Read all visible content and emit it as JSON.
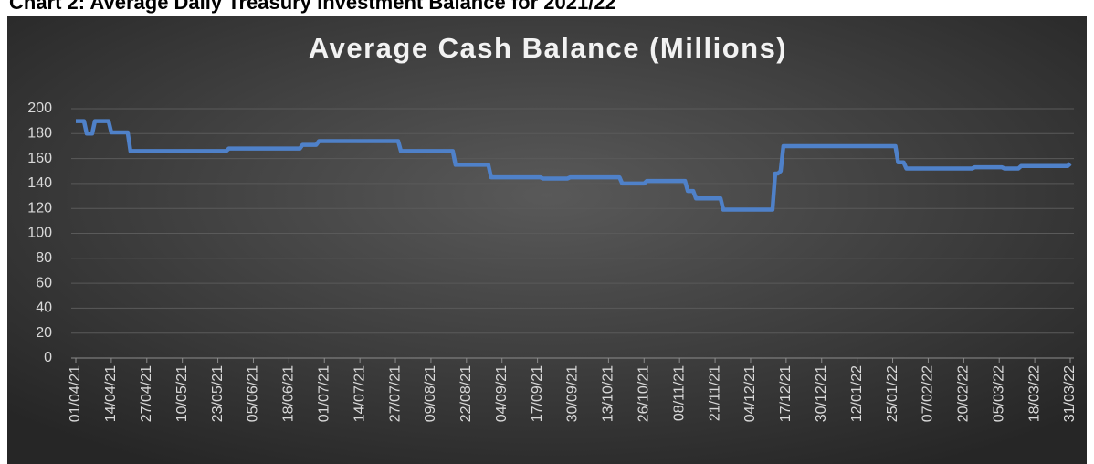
{
  "heading": "Chart 2: Average Daily Treasury Investment Balance for 2021/22",
  "chart_data": {
    "type": "line",
    "title": "Average Cash Balance (Millions)",
    "categories": [
      "01/04/21",
      null,
      null,
      null,
      null,
      null,
      null,
      null,
      null,
      null,
      null,
      null,
      null,
      "14/04/21",
      null,
      null,
      null,
      null,
      null,
      null,
      null,
      null,
      null,
      null,
      null,
      null,
      "27/04/21",
      null,
      null,
      null,
      null,
      null,
      null,
      null,
      null,
      null,
      null,
      null,
      null,
      "10/05/21",
      null,
      null,
      null,
      null,
      null,
      null,
      null,
      null,
      null,
      null,
      null,
      null,
      "23/05/21",
      null,
      null,
      null,
      null,
      null,
      null,
      null,
      null,
      null,
      null,
      null,
      null,
      "05/06/21",
      null,
      null,
      null,
      null,
      null,
      null,
      null,
      null,
      null,
      null,
      null,
      null,
      "18/06/21",
      null,
      null,
      null,
      null,
      null,
      null,
      null,
      null,
      null,
      null,
      null,
      null,
      "01/07/21",
      null,
      null,
      null,
      null,
      null,
      null,
      null,
      null,
      null,
      null,
      null,
      null,
      "14/07/21",
      null,
      null,
      null,
      null,
      null,
      null,
      null,
      null,
      null,
      null,
      null,
      null,
      "27/07/21",
      null,
      null,
      null,
      null,
      null,
      null,
      null,
      null,
      null,
      null,
      null,
      null,
      "09/08/21",
      null,
      null,
      null,
      null,
      null,
      null,
      null,
      null,
      null,
      null,
      null,
      null,
      "22/08/21",
      null,
      null,
      null,
      null,
      null,
      null,
      null,
      null,
      null,
      null,
      null,
      null,
      "04/09/21",
      null,
      null,
      null,
      null,
      null,
      null,
      null,
      null,
      null,
      null,
      null,
      null,
      "17/09/21",
      null,
      null,
      null,
      null,
      null,
      null,
      null,
      null,
      null,
      null,
      null,
      null,
      "30/09/21",
      null,
      null,
      null,
      null,
      null,
      null,
      null,
      null,
      null,
      null,
      null,
      null,
      "13/10/21",
      null,
      null,
      null,
      null,
      null,
      null,
      null,
      null,
      null,
      null,
      null,
      null,
      "26/10/21",
      null,
      null,
      null,
      null,
      null,
      null,
      null,
      null,
      null,
      null,
      null,
      null,
      "08/11/21",
      null,
      null,
      null,
      null,
      null,
      null,
      null,
      null,
      null,
      null,
      null,
      null,
      "21/11/21",
      null,
      null,
      null,
      null,
      null,
      null,
      null,
      null,
      null,
      null,
      null,
      null,
      "04/12/21",
      null,
      null,
      null,
      null,
      null,
      null,
      null,
      null,
      null,
      null,
      null,
      null,
      "17/12/21",
      null,
      null,
      null,
      null,
      null,
      null,
      null,
      null,
      null,
      null,
      null,
      null,
      "30/12/21",
      null,
      null,
      null,
      null,
      null,
      null,
      null,
      null,
      null,
      null,
      null,
      null,
      "12/01/22",
      null,
      null,
      null,
      null,
      null,
      null,
      null,
      null,
      null,
      null,
      null,
      null,
      "25/01/22",
      null,
      null,
      null,
      null,
      null,
      null,
      null,
      null,
      null,
      null,
      null,
      null,
      "07/02/22",
      null,
      null,
      null,
      null,
      null,
      null,
      null,
      null,
      null,
      null,
      null,
      null,
      "20/02/22",
      null,
      null,
      null,
      null,
      null,
      null,
      null,
      null,
      null,
      null,
      null,
      null,
      "05/03/22",
      null,
      null,
      null,
      null,
      null,
      null,
      null,
      null,
      null,
      null,
      null,
      null,
      "18/03/22",
      null,
      null,
      null,
      null,
      null,
      null,
      null,
      null,
      null,
      null,
      null,
      null,
      "31/03/22"
    ],
    "values": [
      190,
      190,
      190,
      190,
      180,
      180,
      180,
      190,
      190,
      190,
      190,
      190,
      190,
      181,
      181,
      181,
      181,
      181,
      181,
      181,
      166,
      166,
      166,
      166,
      166,
      166,
      166,
      166,
      166,
      166,
      166,
      166,
      166,
      166,
      166,
      166,
      166,
      166,
      166,
      166,
      166,
      166,
      166,
      166,
      166,
      166,
      166,
      166,
      166,
      166,
      166,
      166,
      166,
      166,
      166,
      166,
      168,
      168,
      168,
      168,
      168,
      168,
      168,
      168,
      168,
      168,
      168,
      168,
      168,
      168,
      168,
      168,
      168,
      168,
      168,
      168,
      168,
      168,
      168,
      168,
      168,
      168,
      168,
      171,
      171,
      171,
      171,
      171,
      171,
      174,
      174,
      174,
      174,
      174,
      174,
      174,
      174,
      174,
      174,
      174,
      174,
      174,
      174,
      174,
      174,
      174,
      174,
      174,
      174,
      174,
      174,
      174,
      174,
      174,
      174,
      174,
      174,
      174,
      174,
      166,
      166,
      166,
      166,
      166,
      166,
      166,
      166,
      166,
      166,
      166,
      166,
      166,
      166,
      166,
      166,
      166,
      166,
      166,
      166,
      155,
      155,
      155,
      155,
      155,
      155,
      155,
      155,
      155,
      155,
      155,
      155,
      155,
      145,
      145,
      145,
      145,
      145,
      145,
      145,
      145,
      145,
      145,
      145,
      145,
      145,
      145,
      145,
      145,
      145,
      145,
      145,
      144,
      144,
      144,
      144,
      144,
      144,
      144,
      144,
      144,
      144,
      145,
      145,
      145,
      145,
      145,
      145,
      145,
      145,
      145,
      145,
      145,
      145,
      145,
      145,
      145,
      145,
      145,
      145,
      145,
      140,
      140,
      140,
      140,
      140,
      140,
      140,
      140,
      140,
      142,
      142,
      142,
      142,
      142,
      142,
      142,
      142,
      142,
      142,
      142,
      142,
      142,
      142,
      142,
      134,
      134,
      134,
      128,
      128,
      128,
      128,
      128,
      128,
      128,
      128,
      128,
      128,
      119,
      119,
      119,
      119,
      119,
      119,
      119,
      119,
      119,
      119,
      119,
      119,
      119,
      119,
      119,
      119,
      119,
      119,
      119,
      148,
      148,
      150,
      170,
      170,
      170,
      170,
      170,
      170,
      170,
      170,
      170,
      170,
      170,
      170,
      170,
      170,
      170,
      170,
      170,
      170,
      170,
      170,
      170,
      170,
      170,
      170,
      170,
      170,
      170,
      170,
      170,
      170,
      170,
      170,
      170,
      170,
      170,
      170,
      170,
      170,
      170,
      170,
      170,
      170,
      157,
      157,
      157,
      152,
      152,
      152,
      152,
      152,
      152,
      152,
      152,
      152,
      152,
      152,
      152,
      152,
      152,
      152,
      152,
      152,
      152,
      152,
      152,
      152,
      152,
      152,
      152,
      152,
      153,
      153,
      153,
      153,
      153,
      153,
      153,
      153,
      153,
      153,
      153,
      152,
      152,
      152,
      152,
      152,
      152,
      154,
      154,
      154,
      154,
      154,
      154,
      154,
      154,
      154,
      154,
      154,
      154,
      154,
      154,
      154,
      154,
      154,
      154,
      156
    ],
    "color": "#4f81c9",
    "ylim": [
      0,
      200
    ],
    "yticks": [
      0,
      20,
      40,
      60,
      80,
      100,
      120,
      140,
      160,
      180,
      200
    ],
    "grid": true
  }
}
